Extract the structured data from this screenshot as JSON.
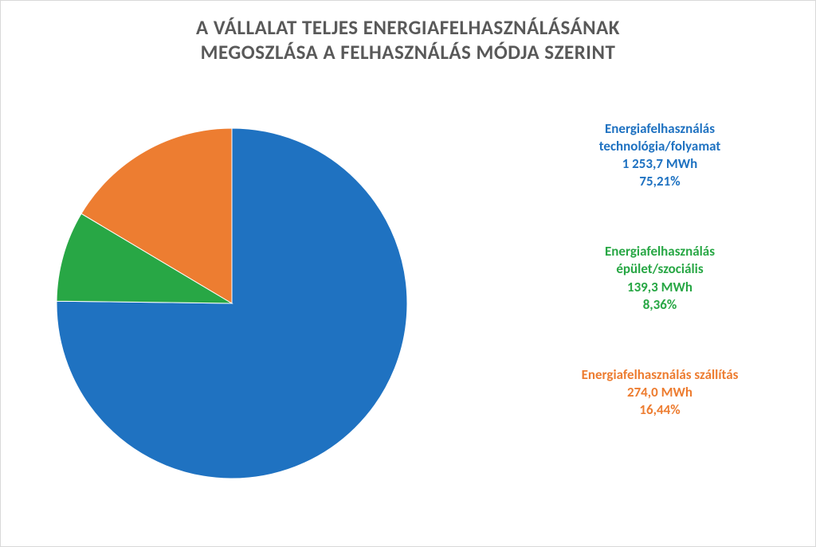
{
  "chart": {
    "type": "pie",
    "title_line1": "A VÁLLALAT TELJES ENERGIAFELHASZNÁLÁSÁNAK",
    "title_line2": "MEGOSZLÁSA A FELHASZNÁLÁS MÓDJA SZERINT",
    "title_fontsize": 25,
    "title_color": "#595959",
    "background_color": "#ffffff",
    "border_color": "#d9d9d9",
    "pie_radius": 220,
    "start_angle_deg": -90,
    "slices": [
      {
        "key": "technology",
        "label_line1": "Energiafelhasználás",
        "label_line2": "technológia/folyamat",
        "value_mwh_text": "1 253,7 MWh",
        "percent_text": "75,21%",
        "percent_value": 75.21,
        "color": "#1f72c1"
      },
      {
        "key": "building",
        "label_line1": "Energiafelhasználás",
        "label_line2": "épület/szociális",
        "value_mwh_text": "139,3 MWh",
        "percent_text": "8,36%",
        "percent_value": 8.36,
        "color": "#28a745"
      },
      {
        "key": "transport",
        "label_line1": "Energiafelhasználás  szállítás",
        "label_line2": "",
        "value_mwh_text": "274,0 MWh",
        "percent_text": "16,44%",
        "percent_value": 16.44,
        "color": "#ed7d31"
      }
    ],
    "legend_fontsize": 17
  }
}
